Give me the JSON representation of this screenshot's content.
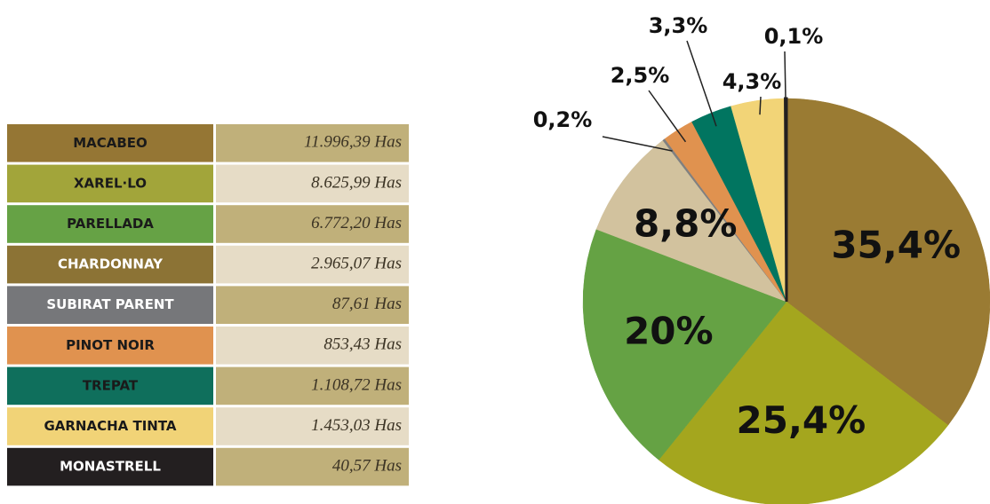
{
  "table": {
    "rows": [
      {
        "label": "MACABEO",
        "value": "11.996,39 Has",
        "color": "#957634",
        "text_color": "#1a1a1a"
      },
      {
        "label": "XAREL·LO",
        "value": "8.625,99 Has",
        "color": "#a2a53a",
        "text_color": "#1a1a1a"
      },
      {
        "label": "PARELLADA",
        "value": "6.772,20 Has",
        "color": "#66a245",
        "text_color": "#1a1a1a"
      },
      {
        "label": "CHARDONNAY",
        "value": "2.965,07 Has",
        "color": "#8c7335",
        "text_color": "#ffffff"
      },
      {
        "label": "SUBIRAT PARENT",
        "value": "87,61 Has",
        "color": "#76777a",
        "text_color": "#ffffff"
      },
      {
        "label": "PINOT NOIR",
        "value": "853,43 Has",
        "color": "#e0924f",
        "text_color": "#1a1a1a"
      },
      {
        "label": "TREPAT",
        "value": "1.108,72 Has",
        "color": "#0f6f5c",
        "text_color": "#1a1a1a"
      },
      {
        "label": "GARNACHA TINTA",
        "value": "1.453,03 Has",
        "color": "#f1d377",
        "text_color": "#1a1a1a"
      },
      {
        "label": "MONASTRELL",
        "value": "40,57 Has",
        "color": "#231f20",
        "text_color": "#ffffff"
      }
    ]
  },
  "chart_data": {
    "type": "pie",
    "values": [
      35.4,
      25.4,
      20,
      8.8,
      0.2,
      2.5,
      3.3,
      4.3,
      0.1
    ],
    "value_labels": [
      "35,4%",
      "25,4%",
      "20%",
      "8,8%",
      "0,2%",
      "2,5%",
      "3,3%",
      "4,3%",
      "0,1%"
    ],
    "colors": [
      "#9a7b33",
      "#a4a61e",
      "#65a244",
      "#d2c29e",
      "#808080",
      "#e0924f",
      "#017560",
      "#f2d477",
      "#231f20"
    ]
  }
}
